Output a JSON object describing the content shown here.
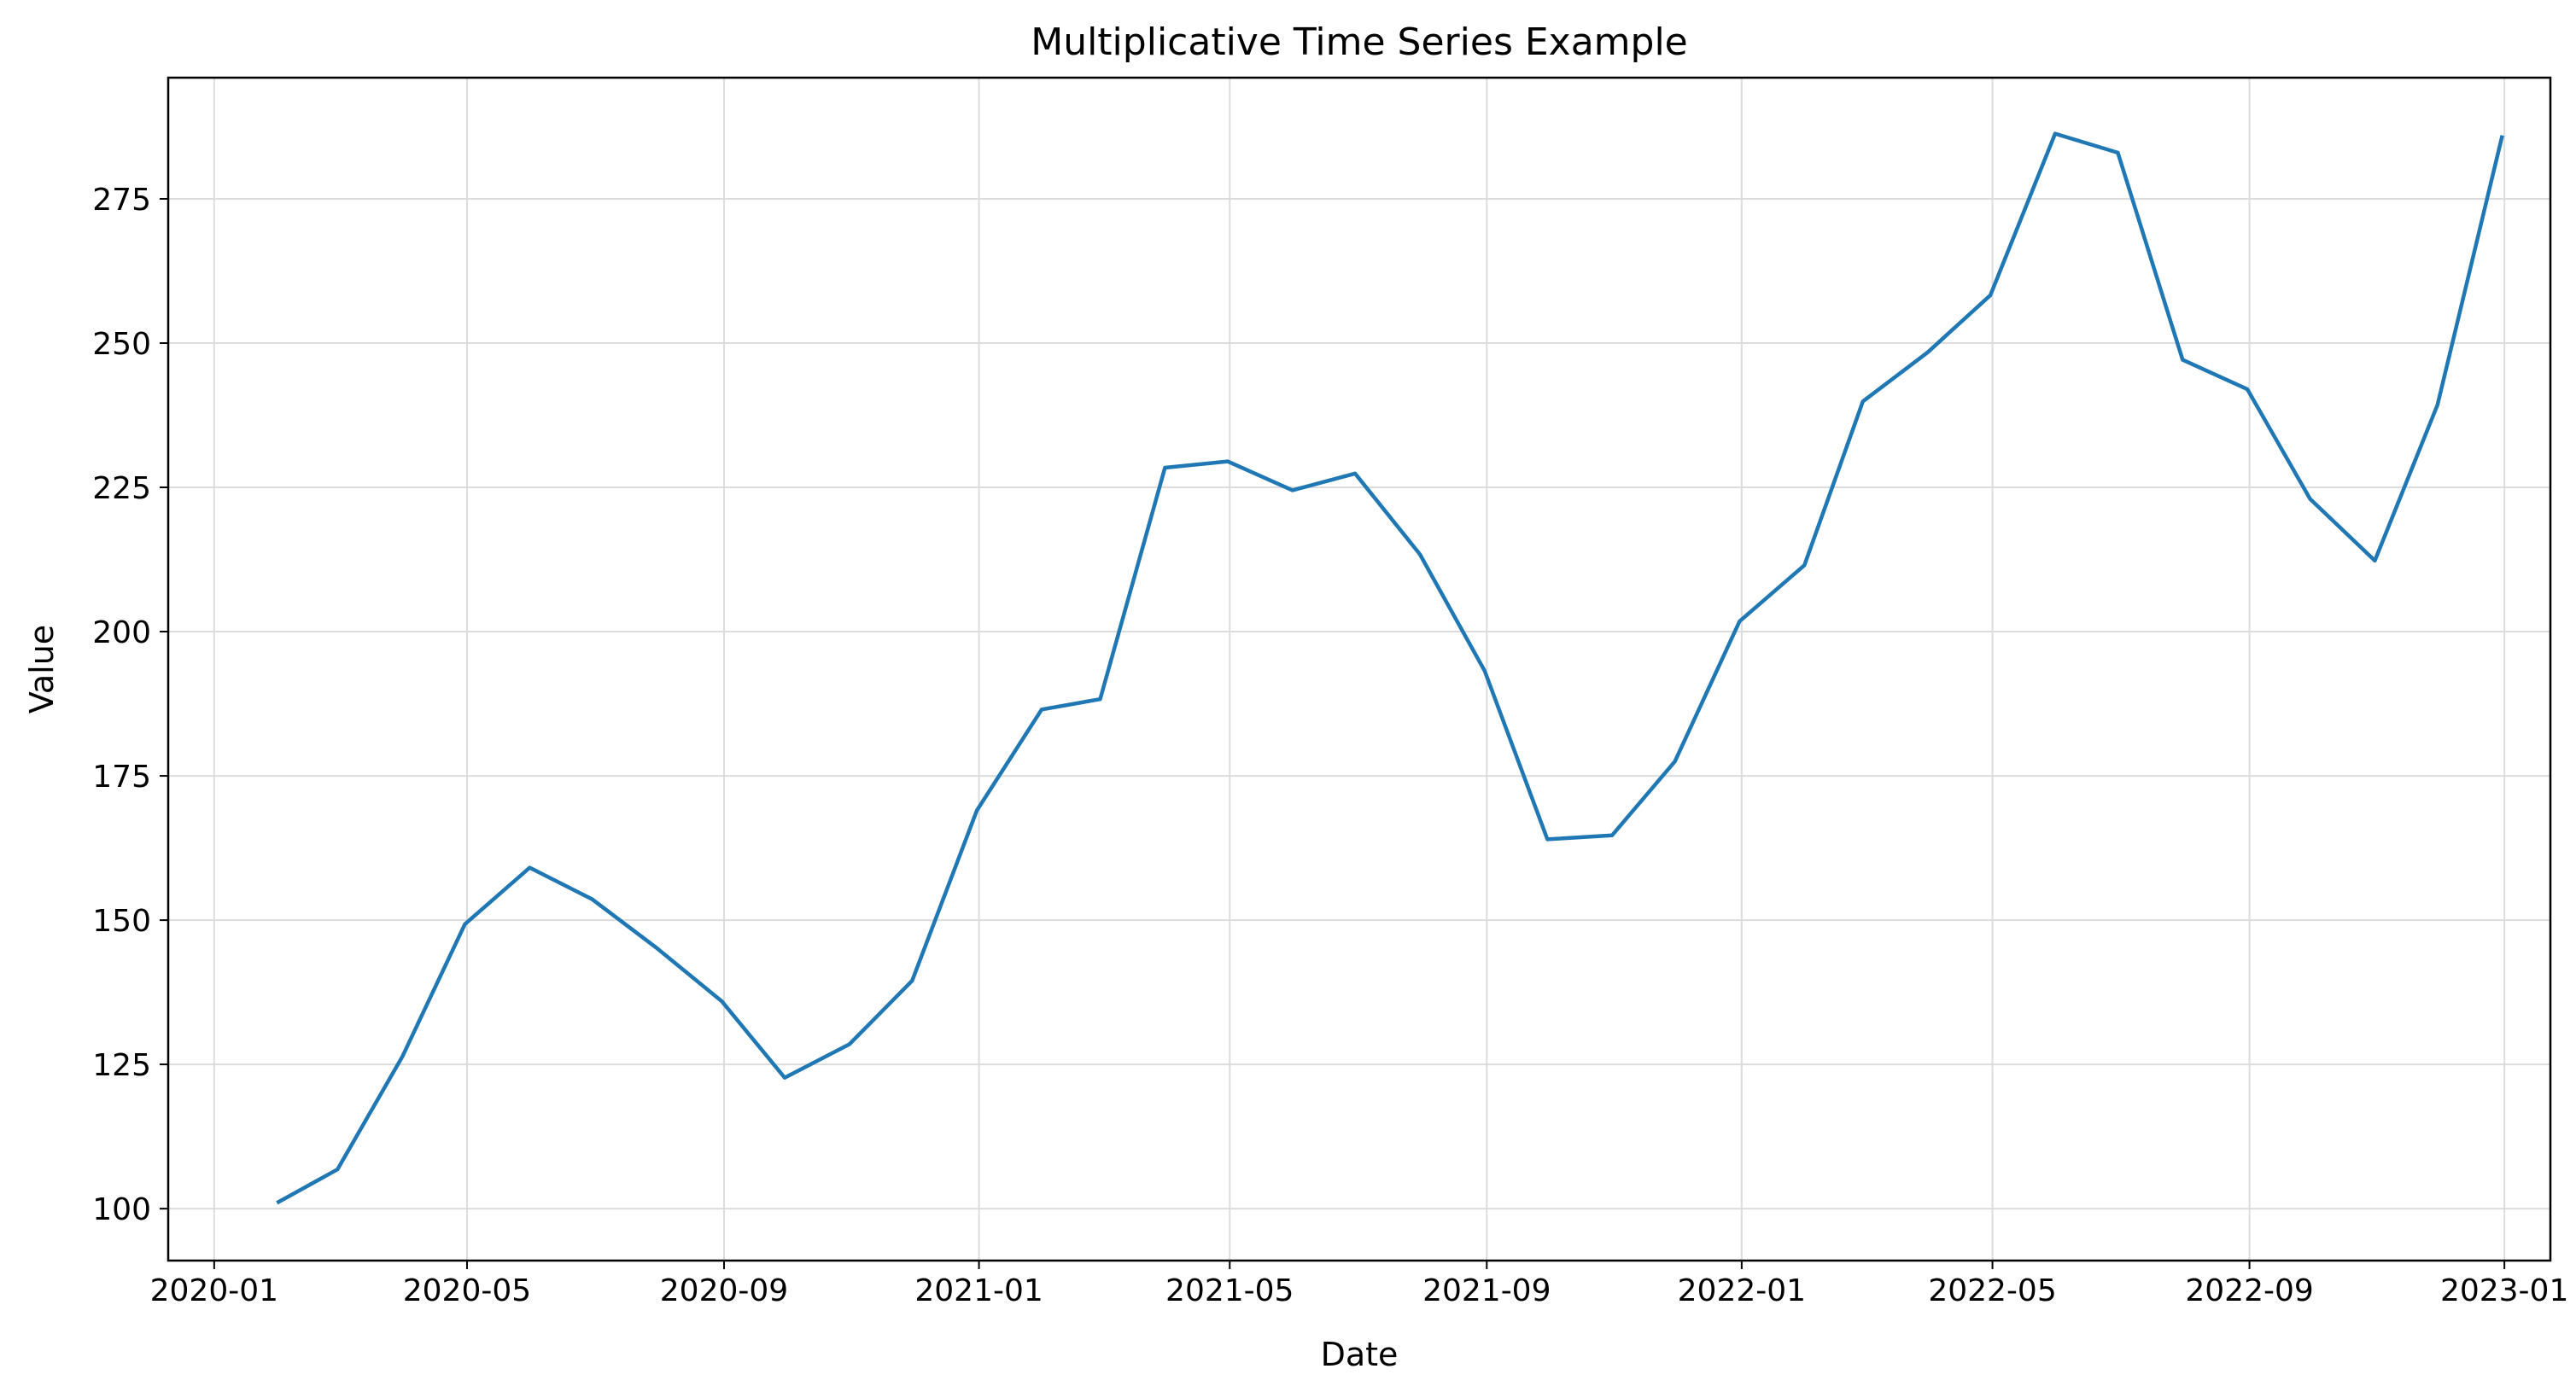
{
  "chart_data": {
    "type": "line",
    "title": "Multiplicative Time Series Example",
    "xlabel": "Date",
    "ylabel": "Value",
    "x_tick_labels": [
      "2020-01",
      "2020-05",
      "2020-09",
      "2021-01",
      "2021-05",
      "2021-09",
      "2022-01",
      "2022-05",
      "2022-09",
      "2023-01"
    ],
    "y_tick_labels": [
      "100",
      "125",
      "150",
      "175",
      "200",
      "225",
      "250",
      "275"
    ],
    "x_tick_dates": [
      "2020-01-01",
      "2020-05-01",
      "2020-09-01",
      "2021-01-01",
      "2021-05-01",
      "2021-09-01",
      "2022-01-01",
      "2022-05-01",
      "2022-09-01",
      "2023-01-01"
    ],
    "y_ticks": [
      100,
      125,
      150,
      175,
      200,
      225,
      250,
      275
    ],
    "xlim": [
      "2019-12-10",
      "2023-01-23"
    ],
    "ylim": [
      91,
      296
    ],
    "grid": true,
    "line_color": "#1f77b4",
    "series": [
      {
        "x": [
          "2020-01-31",
          "2020-02-29",
          "2020-03-31",
          "2020-04-30",
          "2020-05-31",
          "2020-06-30",
          "2020-07-31",
          "2020-08-31",
          "2020-09-30",
          "2020-10-31",
          "2020-11-30",
          "2020-12-31",
          "2021-01-31",
          "2021-02-28",
          "2021-03-31",
          "2021-04-30",
          "2021-05-31",
          "2021-06-30",
          "2021-07-31",
          "2021-08-31",
          "2021-09-30",
          "2021-10-31",
          "2021-11-30",
          "2021-12-31",
          "2022-01-31",
          "2022-02-28",
          "2022-03-31",
          "2022-04-30",
          "2022-05-31",
          "2022-06-30",
          "2022-07-31",
          "2022-08-31",
          "2022-09-30",
          "2022-10-31",
          "2022-11-30",
          "2022-12-31"
        ],
        "values": [
          101.0,
          106.8,
          126.3,
          149.3,
          159.1,
          153.6,
          145.1,
          135.9,
          122.7,
          128.5,
          139.5,
          169.0,
          186.5,
          188.3,
          228.4,
          229.5,
          224.5,
          227.4,
          213.4,
          193.2,
          164.0,
          164.7,
          177.5,
          201.8,
          211.5,
          239.9,
          248.4,
          258.3,
          286.3,
          283.0,
          247.1,
          242.0,
          223.0,
          212.3,
          239.3,
          286.0
        ]
      }
    ]
  }
}
